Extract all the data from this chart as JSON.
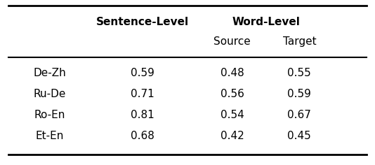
{
  "rows": [
    [
      "De-Zh",
      "0.59",
      "0.48",
      "0.55"
    ],
    [
      "Ru-De",
      "0.71",
      "0.56",
      "0.59"
    ],
    [
      "Ro-En",
      "0.81",
      "0.54",
      "0.67"
    ],
    [
      "Et-En",
      "0.68",
      "0.42",
      "0.45"
    ]
  ],
  "col1_header": "Sentence-Level",
  "col23_header": "Word-Level",
  "col2_subheader": "Source",
  "col3_subheader": "Target",
  "bg_color": "#ffffff",
  "text_color": "#000000",
  "font_size": 11,
  "header_font_size": 11
}
